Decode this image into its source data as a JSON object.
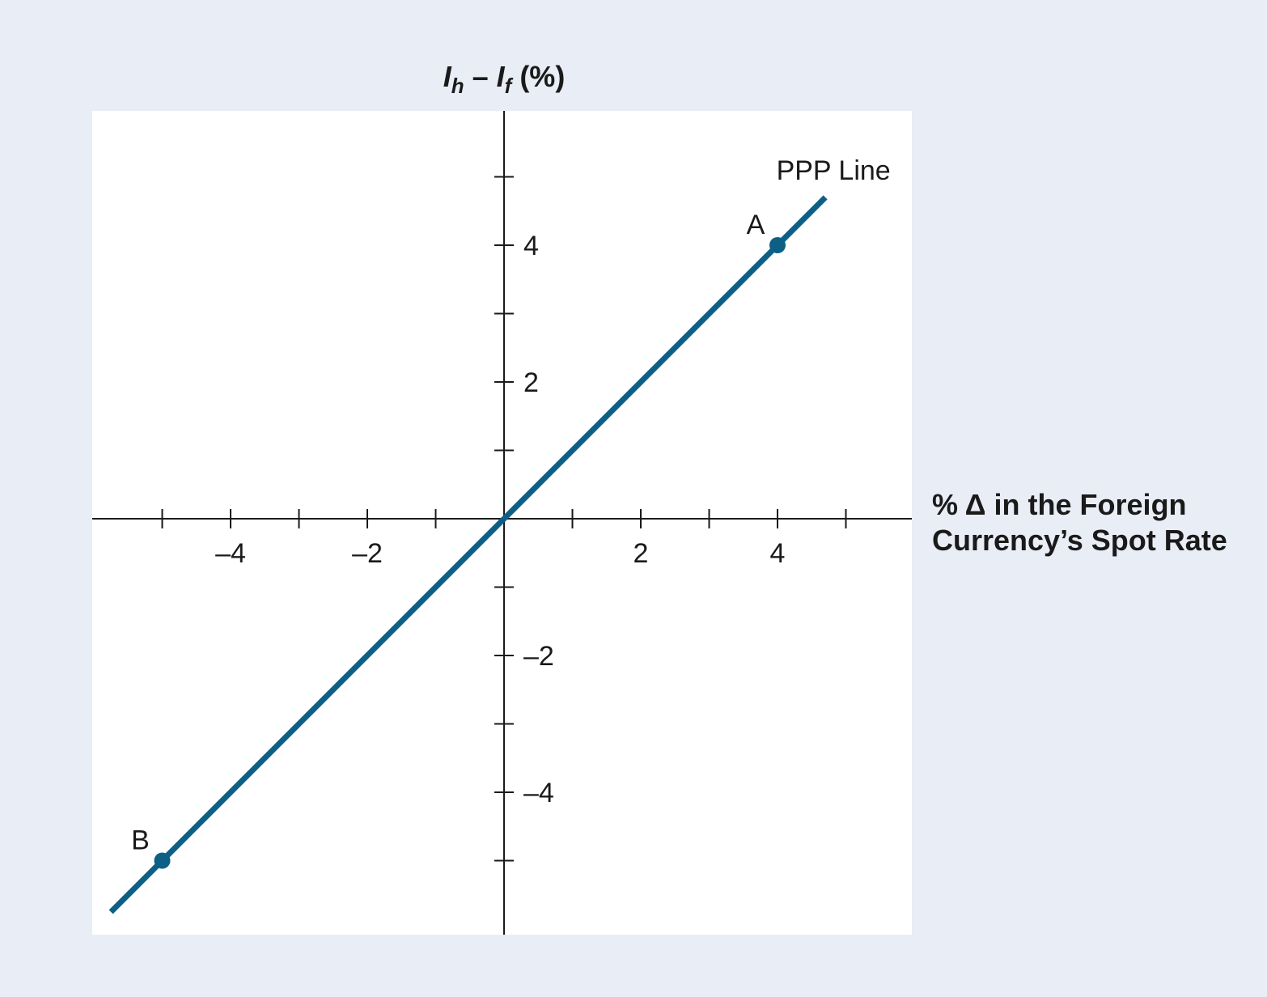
{
  "chart_data": {
    "type": "line",
    "title": "",
    "ylabel": {
      "i1": "I",
      "s1": "h",
      "mid": " – ",
      "i2": "I",
      "s2": "f",
      "tail": " (%)"
    },
    "xlabel": {
      "line1": "% Δ in the Foreign",
      "line2": "Currency’s Spot Rate"
    },
    "xlim": [
      -6,
      6
    ],
    "ylim": [
      -6,
      6
    ],
    "x_major_ticks": [
      -5,
      -4,
      -3,
      -2,
      -1,
      1,
      2,
      3,
      4,
      5
    ],
    "y_major_ticks": [
      -5,
      -4,
      -3,
      -2,
      -1,
      1,
      2,
      3,
      4,
      5
    ],
    "x_tick_labels": [
      {
        "value": -4,
        "text": "–4"
      },
      {
        "value": -2,
        "text": "–2"
      },
      {
        "value": 2,
        "text": "2"
      },
      {
        "value": 4,
        "text": "4"
      }
    ],
    "y_tick_labels": [
      {
        "value": 4,
        "text": "4"
      },
      {
        "value": 2,
        "text": "2"
      },
      {
        "value": -2,
        "text": "–2"
      },
      {
        "value": -4,
        "text": "–4"
      }
    ],
    "series": [
      {
        "name": "PPP Line",
        "color": "#0d5f86",
        "x": [
          -5.75,
          4.7
        ],
        "y": [
          -5.75,
          4.7
        ]
      }
    ],
    "points": [
      {
        "label": "A",
        "x": 4,
        "y": 4
      },
      {
        "label": "B",
        "x": -5,
        "y": -5
      }
    ],
    "grid": false,
    "colors": {
      "page_background": "#e9edf5",
      "plot_background": "#ffffff",
      "line": "#0d5f86",
      "axis": "#1a1a1a"
    }
  }
}
